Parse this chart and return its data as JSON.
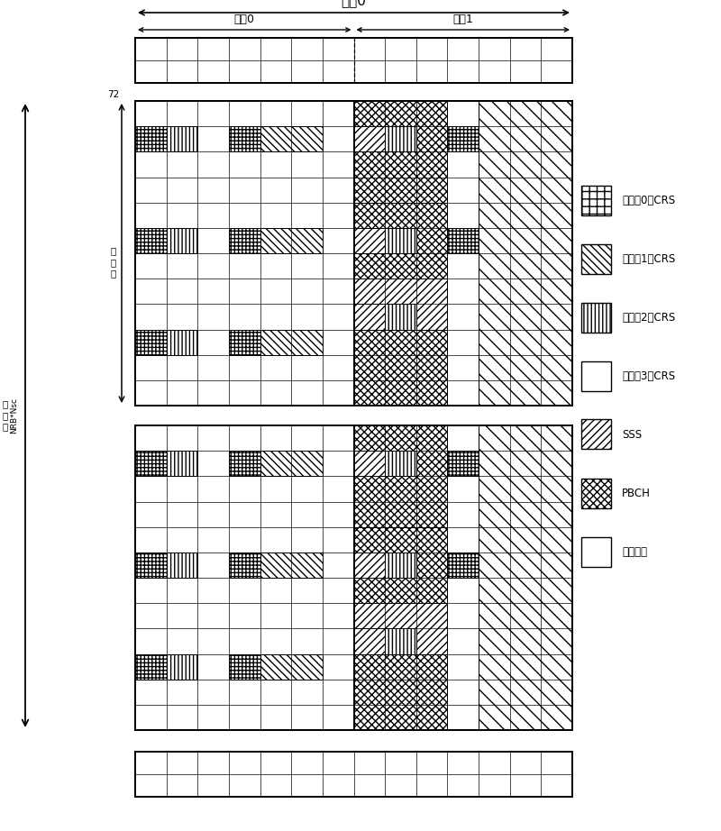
{
  "fig_width": 8.0,
  "fig_height": 9.22,
  "bg_color": "#ffffff",
  "title_top": "子帝0",
  "slot0_label": "时陦0",
  "slot1_label": "时陦1",
  "legend_items": [
    {
      "label": "天线口0的CRS",
      "hatch": "++"
    },
    {
      "label": "天线口1的CRS",
      "hatch": "\\\\\\\\"
    },
    {
      "label": "天线口2的CRS",
      "hatch": "||||"
    },
    {
      "label": "天线口3的CRS",
      "hatch": "===="
    },
    {
      "label": "SSS",
      "hatch": "////"
    },
    {
      "label": "PBCH",
      "hatch": "xxxx"
    },
    {
      "label": "数据部分",
      "hatch": ""
    }
  ]
}
